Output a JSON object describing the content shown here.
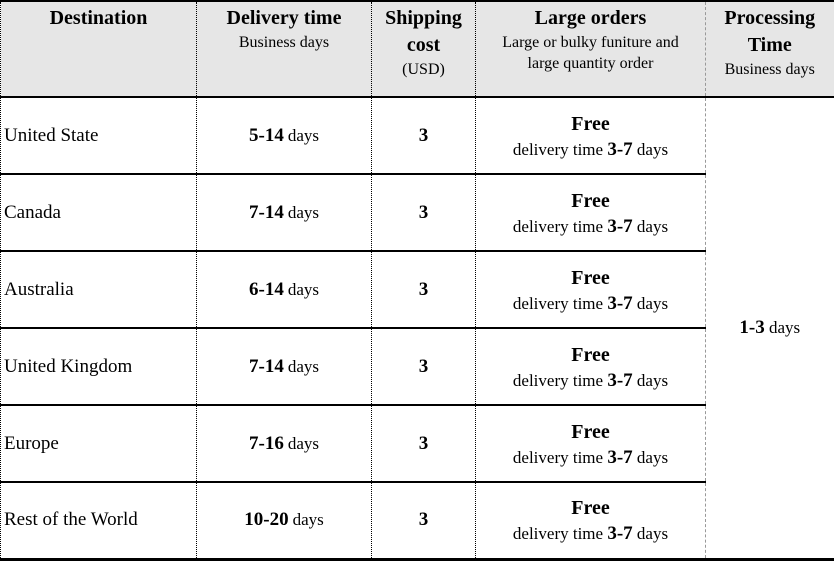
{
  "table": {
    "header": {
      "destination": "Destination",
      "delivery_time": {
        "title": "Delivery time",
        "subtitle": "Business days"
      },
      "shipping_cost": {
        "line1": "Shipping",
        "line2": "cost",
        "line3": "(USD)"
      },
      "large_orders": {
        "title": "Large orders",
        "subtitle_line1": "Large or bulky funiture and",
        "subtitle_line2": "large quantity order"
      },
      "processing_time": {
        "line1": "Processing",
        "line2": "Time",
        "line3": "Business days"
      }
    },
    "rows": [
      {
        "destination": "United State",
        "delivery_range": "5-14",
        "delivery_unit": "days",
        "shipping_cost": "3",
        "large_free": "Free",
        "large_prefix": "delivery time",
        "large_range": "3-7",
        "large_unit": "days"
      },
      {
        "destination": "Canada",
        "delivery_range": "7-14",
        "delivery_unit": "days",
        "shipping_cost": "3",
        "large_free": "Free",
        "large_prefix": "delivery time",
        "large_range": "3-7",
        "large_unit": "days"
      },
      {
        "destination": "Australia",
        "delivery_range": "6-14",
        "delivery_unit": "days",
        "shipping_cost": "3",
        "large_free": "Free",
        "large_prefix": "delivery time",
        "large_range": "3-7",
        "large_unit": "days"
      },
      {
        "destination": "United Kingdom",
        "delivery_range": "7-14",
        "delivery_unit": "days",
        "shipping_cost": "3",
        "large_free": "Free",
        "large_prefix": "delivery time",
        "large_range": "3-7",
        "large_unit": "days"
      },
      {
        "destination": "Europe",
        "delivery_range": "7-16",
        "delivery_unit": "days",
        "shipping_cost": "3",
        "large_free": "Free",
        "large_prefix": "delivery time",
        "large_range": "3-7",
        "large_unit": "days"
      },
      {
        "destination": "Rest of the World",
        "delivery_range": "10-20",
        "delivery_unit": "days",
        "shipping_cost": "3",
        "large_free": "Free",
        "large_prefix": "delivery time",
        "large_range": "3-7",
        "large_unit": "days"
      }
    ],
    "processing_value": {
      "range": "1-3",
      "unit": "days"
    }
  },
  "colors": {
    "header_bg": "#e6e6e6",
    "border_black": "#000000",
    "divider_gray": "#999999",
    "text": "#000000"
  }
}
